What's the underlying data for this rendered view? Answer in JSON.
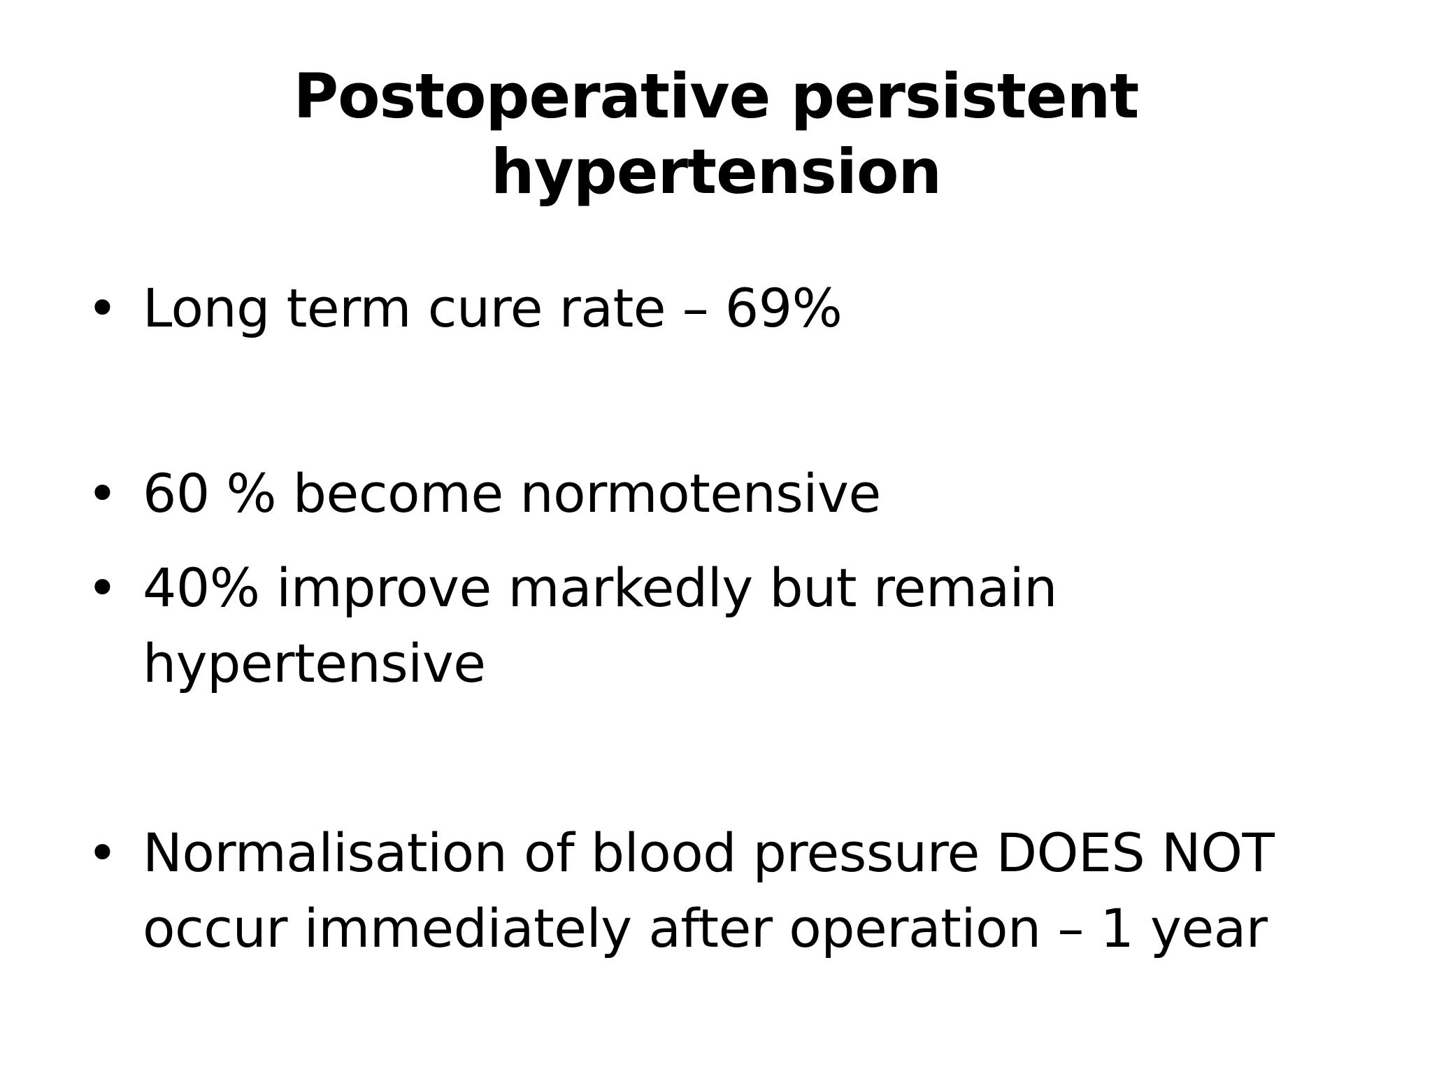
{
  "slide": {
    "title": "Postoperative persistent\nhypertension",
    "bullet_glyph": "•",
    "bullets": [
      {
        "text": "Long term cure rate – 69%"
      },
      {
        "text": "60 % become normotensive"
      },
      {
        "text": "40% improve markedly but remain\nhypertensive"
      },
      {
        "text": "Normalisation of blood pressure DOES NOT\noccur immediately after operation – 1 year"
      }
    ]
  }
}
